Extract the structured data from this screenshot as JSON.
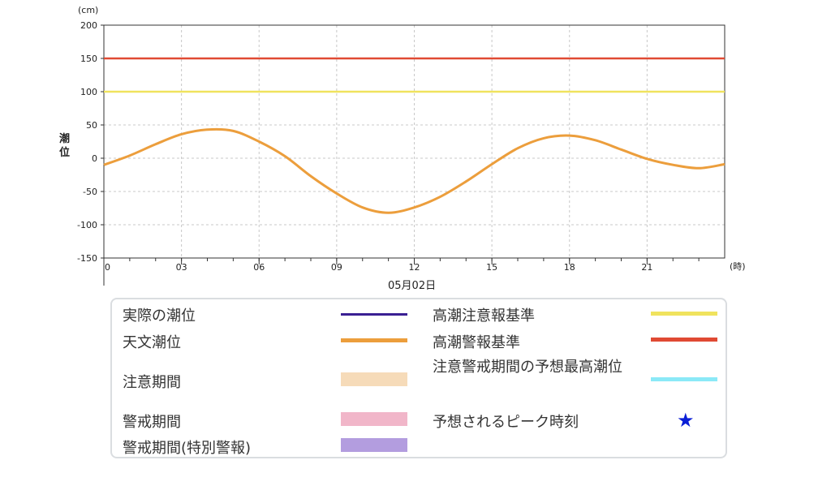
{
  "chart_data": {
    "type": "line",
    "y_unit": "(cm)",
    "ylabel": "潮位",
    "x_unit": "(時)",
    "date_label": "05月02日",
    "xlim": [
      0,
      24
    ],
    "ylim": [
      -150,
      200
    ],
    "x_ticks": [
      {
        "value": 0,
        "label": "0"
      },
      {
        "value": 3,
        "label": "03"
      },
      {
        "value": 6,
        "label": "06"
      },
      {
        "value": 9,
        "label": "09"
      },
      {
        "value": 12,
        "label": "12"
      },
      {
        "value": 15,
        "label": "15"
      },
      {
        "value": 18,
        "label": "18"
      },
      {
        "value": 21,
        "label": "21"
      }
    ],
    "y_ticks": [
      200,
      150,
      100,
      50,
      0,
      -50,
      -100,
      -150
    ],
    "grid": true,
    "series": [
      {
        "name": "天文潮位",
        "color": "#ec9e3c",
        "points": [
          [
            0,
            -10
          ],
          [
            1,
            4
          ],
          [
            2,
            21
          ],
          [
            3,
            36
          ],
          [
            4,
            43
          ],
          [
            5,
            41
          ],
          [
            6,
            25
          ],
          [
            7,
            3
          ],
          [
            8,
            -27
          ],
          [
            9,
            -53
          ],
          [
            10,
            -74
          ],
          [
            11,
            -82
          ],
          [
            12,
            -74
          ],
          [
            13,
            -58
          ],
          [
            14,
            -35
          ],
          [
            15,
            -9
          ],
          [
            16,
            15
          ],
          [
            17,
            30
          ],
          [
            18,
            34
          ],
          [
            19,
            27
          ],
          [
            20,
            13
          ],
          [
            21,
            -1
          ],
          [
            22,
            -10
          ],
          [
            23,
            -15
          ],
          [
            24,
            -9
          ]
        ]
      }
    ],
    "reference_lines": [
      {
        "name": "高潮注意報基準",
        "value": 100,
        "color": "#f0e35e"
      },
      {
        "name": "高潮警報基準",
        "value": 150,
        "color": "#e04a33"
      }
    ]
  },
  "legend": {
    "items": [
      {
        "label": "実際の潮位",
        "color": "#3a1f93",
        "kind": "line"
      },
      {
        "label": "天文潮位",
        "color": "#ec9e3c",
        "kind": "line"
      },
      {
        "label": "注意期間",
        "color": "#f6dbb9",
        "kind": "band"
      },
      {
        "label": "警戒期間",
        "color": "#f1b6c9",
        "kind": "band"
      },
      {
        "label": "警戒期間(特別警報)",
        "color": "#b39ddf",
        "kind": "band"
      },
      {
        "label": "高潮注意報基準",
        "color": "#f0e35e",
        "kind": "line"
      },
      {
        "label": "高潮警報基準",
        "color": "#e04a33",
        "kind": "line"
      },
      {
        "label": "注意警戒期間の予想最高潮位",
        "color": "#8be9f7",
        "kind": "line"
      },
      {
        "label": "予想されるピーク時刻",
        "color": "#0a1ed6",
        "kind": "star",
        "symbol": "★"
      }
    ]
  }
}
